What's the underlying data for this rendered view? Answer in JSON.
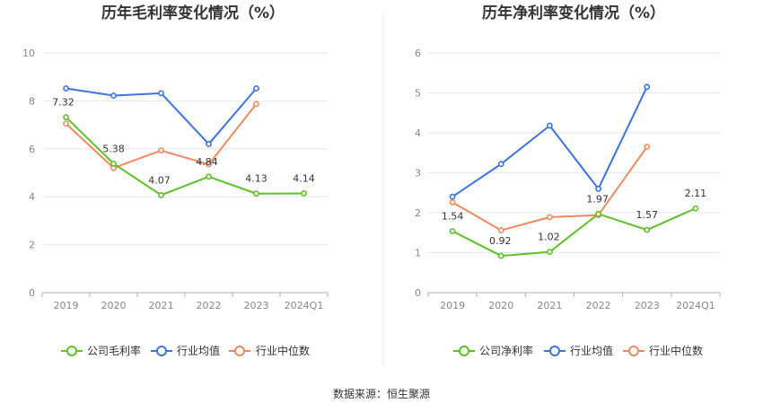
{
  "source_text": "数据来源：恒生聚源",
  "colors": {
    "company": "#5cc225",
    "industry_avg": "#3b73e0",
    "industry_median": "#f08a5d",
    "grid": "#e6e6ef",
    "axis": "#b0b0b0"
  },
  "chart_data": [
    {
      "type": "line",
      "title": "历年毛利率变化情况（%）",
      "categories": [
        "2019",
        "2020",
        "2021",
        "2022",
        "2023",
        "2024Q1"
      ],
      "ylim": [
        0,
        10
      ],
      "yticks": [
        "0",
        "2",
        "4",
        "6",
        "8",
        "10"
      ],
      "grid": true,
      "legend_position": "bottom",
      "series": [
        {
          "name": "公司毛利率",
          "color_key": "company",
          "values": [
            7.32,
            5.38,
            4.07,
            4.84,
            4.13,
            4.14
          ],
          "labels": [
            "7.32",
            "5.38",
            "4.07",
            "4.84",
            "4.13",
            "4.14"
          ]
        },
        {
          "name": "行业均值",
          "color_key": "industry_avg",
          "values": [
            8.52,
            8.22,
            8.32,
            6.2,
            8.52,
            null
          ]
        },
        {
          "name": "行业中位数",
          "color_key": "industry_median",
          "values": [
            7.05,
            5.2,
            5.93,
            5.35,
            7.87,
            null
          ]
        }
      ]
    },
    {
      "type": "line",
      "title": "历年净利率变化情况（%）",
      "categories": [
        "2019",
        "2020",
        "2021",
        "2022",
        "2023",
        "2024Q1"
      ],
      "ylim": [
        0,
        6
      ],
      "yticks": [
        "0",
        "1",
        "2",
        "3",
        "4",
        "5",
        "6"
      ],
      "grid": true,
      "legend_position": "bottom",
      "series": [
        {
          "name": "公司净利率",
          "color_key": "company",
          "values": [
            1.54,
            0.92,
            1.02,
            1.97,
            1.57,
            2.11
          ],
          "labels": [
            "1.54",
            "0.92",
            "1.02",
            "1.97",
            "1.57",
            "2.11"
          ]
        },
        {
          "name": "行业均值",
          "color_key": "industry_avg",
          "values": [
            2.4,
            3.22,
            4.18,
            2.6,
            5.15,
            null
          ]
        },
        {
          "name": "行业中位数",
          "color_key": "industry_median",
          "values": [
            2.26,
            1.56,
            1.89,
            1.94,
            3.65,
            null
          ]
        }
      ]
    }
  ]
}
